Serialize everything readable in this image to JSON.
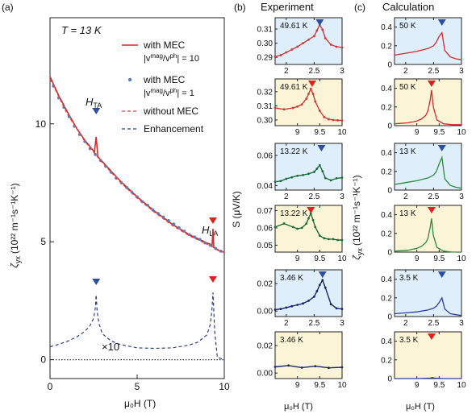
{
  "panel_a": {
    "label": "(a)",
    "temperature_note": "T = 13 K",
    "y_label": "ζ",
    "y_sub": "yx",
    "y_units": "(10²² m⁻¹s⁻¹K⁻¹)",
    "x_label": "μ₀H (T)",
    "multiplier_note": "×10",
    "field_markers": [
      {
        "label": "H",
        "sub": "TA",
        "field": 2.65,
        "color": "#2e4f9e"
      },
      {
        "label": "H",
        "sub": "LA",
        "field": 9.35,
        "color": "#e02020"
      }
    ],
    "legend": [
      {
        "text": "with MEC",
        "sub": "|v",
        "sup": "mag",
        "tail": "/v",
        "sup2": "ph",
        "end": "| = 10",
        "style": "line",
        "color": "#d42a2a"
      },
      {
        "text": "with MEC",
        "sub": "|v",
        "sup": "mag",
        "tail": "/v",
        "sup2": "ph",
        "end": "| = 1",
        "style": "dots",
        "color": "#5b7fb8"
      },
      {
        "text": "without MEC",
        "style": "dash",
        "color": "#e04040"
      },
      {
        "text": "Enhancement",
        "style": "dash",
        "color": "#2a3f86"
      }
    ]
  },
  "panel_b": {
    "label": "(b)",
    "title": "Experiment",
    "y_label": "S (μV/K)",
    "x_label": "μ₀H (T)"
  },
  "panel_c": {
    "label": "(c)",
    "title": "Calculation",
    "y_label": "ζ",
    "y_sub": "yx",
    "y_units": "(10²² m⁻¹s⁻¹K⁻¹)",
    "x_label": "μ₀H (T)"
  },
  "colors": {
    "blue_bg": "#deeefa",
    "yellow_bg": "#fcf4d6",
    "red": "#e02020",
    "blue": "#2e4f9e",
    "green": "#1e6b3a",
    "navy": "#1a2468"
  },
  "chart_data": [
    {
      "id": "a",
      "type": "line",
      "xlabel": "μ₀H (T)",
      "ylabel": "ζyx (10²² m⁻¹s⁻¹K⁻¹)",
      "xlim": [
        0,
        10
      ],
      "ylim": [
        -0.8,
        14.5
      ],
      "xticks": [
        0,
        5,
        10
      ],
      "yticks": [
        0,
        5,
        10
      ],
      "series": [
        {
          "name": "with MEC |vmag/vph| = 10",
          "style": "line",
          "color": "#d42a2a",
          "x": [
            0,
            0.5,
            1,
            1.5,
            2,
            2.5,
            2.55,
            2.65,
            2.75,
            3,
            3.5,
            4,
            5,
            6,
            7,
            8,
            9,
            9.2,
            9.3,
            9.35,
            9.4,
            9.5,
            9.7,
            10
          ],
          "y": [
            12.0,
            11.2,
            10.5,
            9.85,
            9.3,
            8.85,
            8.8,
            9.45,
            8.6,
            8.4,
            8.0,
            7.6,
            6.9,
            6.3,
            5.75,
            5.3,
            4.95,
            4.9,
            4.85,
            5.55,
            4.75,
            4.7,
            4.62,
            4.55
          ]
        },
        {
          "name": "with MEC |vmag/vph| = 1",
          "style": "dots",
          "color": "#5b7fb8",
          "x": [
            0.2,
            0.5,
            0.8,
            1.1,
            1.4,
            1.7,
            2.0,
            2.3,
            2.6,
            2.9,
            3.2,
            3.5,
            3.8,
            4.1,
            4.4,
            4.7,
            5.0,
            5.3,
            5.6,
            5.9,
            6.2,
            6.5,
            6.8,
            7.1,
            7.4,
            7.7,
            8.0,
            8.3,
            8.6,
            8.9,
            9.2,
            9.5,
            9.8
          ],
          "y": [
            11.6,
            11.1,
            10.7,
            10.3,
            9.9,
            9.55,
            9.25,
            8.95,
            8.7,
            8.45,
            8.2,
            7.95,
            7.7,
            7.5,
            7.3,
            7.1,
            6.9,
            6.7,
            6.55,
            6.35,
            6.2,
            6.05,
            5.9,
            5.75,
            5.6,
            5.45,
            5.3,
            5.2,
            5.1,
            4.95,
            4.85,
            4.72,
            4.6
          ]
        },
        {
          "name": "without MEC",
          "style": "dash",
          "color": "#e04040",
          "x": [
            0,
            1,
            2,
            2.5,
            3,
            4,
            5,
            6,
            7,
            8,
            9,
            9.5,
            10
          ],
          "y": [
            11.9,
            10.4,
            9.25,
            8.8,
            8.35,
            7.55,
            6.85,
            6.25,
            5.7,
            5.25,
            4.9,
            4.72,
            4.55
          ]
        },
        {
          "name": "Enhancement",
          "style": "dash",
          "color": "#2a3f86",
          "x": [
            0,
            0.5,
            1,
            1.5,
            2,
            2.3,
            2.5,
            2.6,
            2.65,
            2.7,
            2.8,
            3,
            3.5,
            4,
            5,
            6,
            7,
            8,
            8.5,
            9,
            9.2,
            9.3,
            9.35,
            9.45,
            9.6,
            10
          ],
          "y": [
            0.55,
            0.65,
            0.78,
            0.95,
            1.2,
            1.45,
            1.75,
            2.2,
            2.75,
            2.1,
            1.55,
            1.1,
            0.8,
            0.65,
            0.5,
            0.48,
            0.5,
            0.62,
            0.75,
            1.05,
            1.5,
            2.2,
            2.85,
            1.2,
            0.1,
            0.0
          ]
        },
        {
          "name": "",
          "style": "dotted",
          "color": "#333333",
          "x": [
            0,
            10
          ],
          "y": [
            0,
            0
          ]
        }
      ]
    },
    {
      "id": "b1",
      "type": "line",
      "annotation": "49.61 K",
      "xlim": [
        1.8,
        3
      ],
      "ylim": [
        0.285,
        0.318
      ],
      "xticks": [
        2,
        2.5,
        3
      ],
      "yticks": [
        0.29,
        0.3,
        0.31
      ],
      "ytick_labels": [
        "0.29",
        "0.30",
        "0.31"
      ],
      "marker": {
        "x": 2.6,
        "color": "#2e4f9e"
      },
      "background": "#deeefa",
      "series": [
        {
          "color": "#cf3b3b",
          "x": [
            1.8,
            1.9,
            2.0,
            2.1,
            2.2,
            2.3,
            2.4,
            2.5,
            2.55,
            2.6,
            2.65,
            2.7,
            2.8,
            2.9,
            3.0
          ],
          "y": [
            0.2905,
            0.2915,
            0.2935,
            0.2955,
            0.2975,
            0.3,
            0.3025,
            0.305,
            0.309,
            0.313,
            0.3095,
            0.3035,
            0.299,
            0.2975,
            0.297
          ]
        }
      ]
    },
    {
      "id": "b2",
      "type": "line",
      "annotation": "49.61 K",
      "xlim": [
        8.5,
        10
      ],
      "ylim": [
        0.296,
        0.329
      ],
      "xticks": [
        9,
        9.5,
        10
      ],
      "yticks": [
        0.3,
        0.31,
        0.32
      ],
      "ytick_labels": [
        "0.30",
        "0.31",
        "0.32"
      ],
      "marker": {
        "x": 9.33,
        "color": "#e02020"
      },
      "background": "#fcf4d6",
      "series": [
        {
          "color": "#cf3b3b",
          "x": [
            8.5,
            8.7,
            8.9,
            9.0,
            9.1,
            9.2,
            9.25,
            9.3,
            9.35,
            9.4,
            9.5,
            9.6,
            9.7,
            9.8,
            9.9,
            10.0
          ],
          "y": [
            0.3085,
            0.3075,
            0.3085,
            0.3095,
            0.311,
            0.315,
            0.3185,
            0.322,
            0.3185,
            0.313,
            0.3065,
            0.302,
            0.3005,
            0.3,
            0.2998,
            0.2997
          ]
        }
      ]
    },
    {
      "id": "b3",
      "type": "line",
      "annotation": "13.22 K",
      "xlim": [
        1.8,
        3
      ],
      "ylim": [
        0.037,
        0.068
      ],
      "xticks": [
        2,
        2.5,
        3
      ],
      "yticks": [
        0.04,
        0.06
      ],
      "ytick_labels": [
        "0.04",
        "0.06"
      ],
      "marker": {
        "x": 2.63,
        "color": "#2e4f9e"
      },
      "background": "#deeefa",
      "series": [
        {
          "color": "#1e6b3a",
          "x": [
            1.8,
            1.9,
            2.0,
            2.1,
            2.2,
            2.3,
            2.4,
            2.5,
            2.55,
            2.6,
            2.65,
            2.7,
            2.8,
            2.9,
            3.0
          ],
          "y": [
            0.0425,
            0.043,
            0.0445,
            0.0455,
            0.0465,
            0.047,
            0.0478,
            0.049,
            0.0512,
            0.0535,
            0.0495,
            0.045,
            0.0435,
            0.0448,
            0.0452
          ]
        }
      ]
    },
    {
      "id": "b4",
      "type": "line",
      "annotation": "13.22 K",
      "xlim": [
        8.5,
        10
      ],
      "ylim": [
        0.046,
        0.073
      ],
      "xticks": [
        9,
        9.5,
        10
      ],
      "yticks": [
        0.05,
        0.06,
        0.07
      ],
      "ytick_labels": [
        "0.05",
        "0.06",
        "0.07"
      ],
      "marker": {
        "x": 9.3,
        "color": "#e02020"
      },
      "background": "#fcf4d6",
      "series": [
        {
          "color": "#1e6b3a",
          "x": [
            8.5,
            8.7,
            8.9,
            9.0,
            9.1,
            9.2,
            9.25,
            9.3,
            9.35,
            9.4,
            9.5,
            9.6,
            9.7,
            9.8,
            9.9,
            10.0
          ],
          "y": [
            0.0605,
            0.0625,
            0.0605,
            0.0595,
            0.06,
            0.0625,
            0.0655,
            0.0685,
            0.0645,
            0.0605,
            0.0555,
            0.054,
            0.0535,
            0.0535,
            0.053,
            0.053
          ]
        }
      ]
    },
    {
      "id": "b5",
      "type": "line",
      "annotation": "3.46 K",
      "xlim": [
        1.8,
        3
      ],
      "ylim": [
        -0.004,
        0.03
      ],
      "xticks": [
        2,
        2.5,
        3
      ],
      "yticks": [
        0.0,
        0.02
      ],
      "ytick_labels": [
        "0.00",
        "0.02"
      ],
      "marker": {
        "x": 2.65,
        "color": "#2e4f9e"
      },
      "background": "#deeefa",
      "series": [
        {
          "color": "#1a2468",
          "x": [
            1.8,
            1.9,
            2.0,
            2.1,
            2.2,
            2.3,
            2.4,
            2.5,
            2.55,
            2.6,
            2.65,
            2.7,
            2.8,
            2.9,
            3.0
          ],
          "y": [
            0.001,
            0.0015,
            0.0025,
            0.0035,
            0.0045,
            0.0055,
            0.0075,
            0.0105,
            0.0145,
            0.019,
            0.0225,
            0.017,
            0.005,
            0.002,
            0.0015
          ]
        }
      ]
    },
    {
      "id": "b6",
      "type": "line",
      "annotation": "3.46 K",
      "xlim": [
        8.5,
        10
      ],
      "ylim": [
        -0.004,
        0.03
      ],
      "xticks": [
        9,
        9.5,
        10
      ],
      "yticks": [
        0.0,
        0.02
      ],
      "ytick_labels": [
        "0.00",
        "0.02"
      ],
      "background": "#fcf4d6",
      "series": [
        {
          "color": "#1a2468",
          "x": [
            8.5,
            8.8,
            9.1,
            9.4,
            9.7,
            10.0
          ],
          "y": [
            0.0045,
            0.0055,
            0.004,
            0.005,
            0.0038,
            0.0042
          ]
        }
      ]
    },
    {
      "id": "c1",
      "type": "line",
      "annotation": "50 K",
      "xlim": [
        1.8,
        3
      ],
      "ylim": [
        0,
        0.5
      ],
      "xticks": [
        2,
        2.5,
        3
      ],
      "yticks": [
        0,
        0.2,
        0.4
      ],
      "ytick_labels": [
        "0",
        "0.2",
        "0.4"
      ],
      "marker": {
        "x": 2.65,
        "color": "#2e4f9e"
      },
      "background": "#deeefa",
      "series": [
        {
          "color": "#d42a2a",
          "x": [
            1.8,
            2.0,
            2.2,
            2.4,
            2.5,
            2.55,
            2.6,
            2.65,
            2.7,
            2.8,
            2.9,
            3.0
          ],
          "y": [
            0.1,
            0.12,
            0.14,
            0.17,
            0.2,
            0.24,
            0.3,
            0.34,
            0.15,
            0.08,
            0.06,
            0.05
          ]
        }
      ]
    },
    {
      "id": "c2",
      "type": "line",
      "annotation": "50 K",
      "xlim": [
        8.5,
        10
      ],
      "ylim": [
        0,
        0.5
      ],
      "xticks": [
        9,
        9.5,
        10
      ],
      "yticks": [
        0,
        0.2,
        0.4
      ],
      "ytick_labels": [
        "0",
        "0.2",
        "0.4"
      ],
      "marker": {
        "x": 9.33,
        "color": "#e02020"
      },
      "background": "#fcf4d6",
      "series": [
        {
          "color": "#d42a2a",
          "x": [
            8.5,
            8.8,
            9.0,
            9.1,
            9.2,
            9.25,
            9.3,
            9.33,
            9.37,
            9.45,
            9.6,
            9.8,
            10.0
          ],
          "y": [
            0.02,
            0.03,
            0.05,
            0.07,
            0.11,
            0.16,
            0.28,
            0.38,
            0.2,
            0.06,
            0.02,
            0.01,
            0.01
          ]
        }
      ]
    },
    {
      "id": "c3",
      "type": "line",
      "annotation": "13 K",
      "xlim": [
        1.8,
        3
      ],
      "ylim": [
        0,
        0.5
      ],
      "xticks": [
        2,
        2.5,
        3
      ],
      "yticks": [
        0,
        0.2,
        0.4
      ],
      "ytick_labels": [
        "0",
        "0.2",
        "0.4"
      ],
      "marker": {
        "x": 2.65,
        "color": "#2e4f9e"
      },
      "background": "#deeefa",
      "series": [
        {
          "color": "#2f8a3e",
          "x": [
            1.8,
            2.0,
            2.2,
            2.4,
            2.5,
            2.55,
            2.6,
            2.65,
            2.7,
            2.8,
            2.9,
            3.0
          ],
          "y": [
            0.06,
            0.08,
            0.1,
            0.13,
            0.16,
            0.2,
            0.28,
            0.35,
            0.12,
            0.05,
            0.03,
            0.02
          ]
        }
      ]
    },
    {
      "id": "c4",
      "type": "line",
      "annotation": "13 K",
      "xlim": [
        8.5,
        10
      ],
      "ylim": [
        0,
        0.5
      ],
      "xticks": [
        9,
        9.5,
        10
      ],
      "yticks": [
        0,
        0.2,
        0.4
      ],
      "ytick_labels": [
        "0",
        "0.2",
        "0.4"
      ],
      "marker": {
        "x": 9.33,
        "color": "#e02020"
      },
      "background": "#fcf4d6",
      "series": [
        {
          "color": "#2f8a3e",
          "x": [
            8.5,
            8.8,
            9.0,
            9.1,
            9.2,
            9.25,
            9.3,
            9.33,
            9.37,
            9.45,
            9.6,
            9.8,
            10.0
          ],
          "y": [
            0.01,
            0.02,
            0.04,
            0.06,
            0.1,
            0.15,
            0.27,
            0.36,
            0.18,
            0.05,
            0.01,
            0.0,
            0.0
          ]
        }
      ]
    },
    {
      "id": "c5",
      "type": "line",
      "annotation": "3.5 K",
      "xlim": [
        1.8,
        3
      ],
      "ylim": [
        0,
        0.5
      ],
      "xticks": [
        2,
        2.5,
        3
      ],
      "yticks": [
        0,
        0.2,
        0.4
      ],
      "ytick_labels": [
        "0",
        "0.2",
        "0.4"
      ],
      "marker": {
        "x": 2.65,
        "color": "#2e4f9e"
      },
      "background": "#deeefa",
      "series": [
        {
          "color": "#2e3f9e",
          "x": [
            1.8,
            2.0,
            2.2,
            2.4,
            2.5,
            2.55,
            2.6,
            2.65,
            2.7,
            2.8,
            2.9,
            3.0
          ],
          "y": [
            0.03,
            0.04,
            0.05,
            0.07,
            0.09,
            0.11,
            0.15,
            0.2,
            0.08,
            0.03,
            0.02,
            0.01
          ]
        }
      ]
    },
    {
      "id": "c6",
      "type": "line",
      "annotation": "3.5 K",
      "xlim": [
        8.5,
        10
      ],
      "ylim": [
        0,
        0.5
      ],
      "xticks": [
        9,
        9.5,
        10
      ],
      "yticks": [
        0,
        0.2,
        0.4
      ],
      "ytick_labels": [
        "0",
        "0.2",
        "0.4"
      ],
      "marker": {
        "x": 9.33,
        "color": "#e02020"
      },
      "background": "#fcf4d6",
      "series": [
        {
          "color": "#2e3f9e",
          "x": [
            8.5,
            9.0,
            9.3,
            9.35,
            9.4,
            9.6,
            10.0
          ],
          "y": [
            0.0,
            0.0,
            0.005,
            0.01,
            0.005,
            0.0,
            0.0
          ]
        }
      ]
    }
  ]
}
